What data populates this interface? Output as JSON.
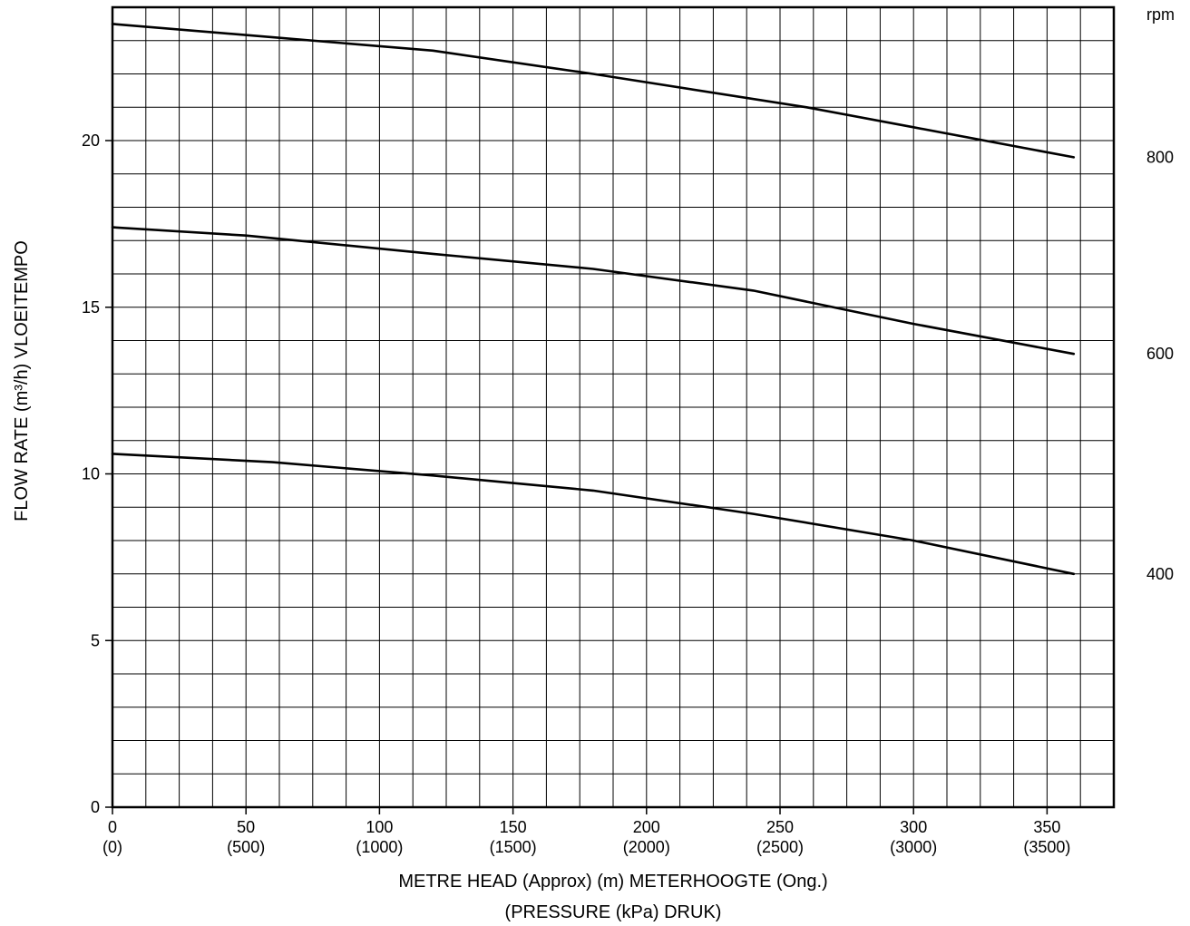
{
  "chart_data": {
    "type": "line",
    "title": "",
    "ylabel": "FLOW RATE (m³/h) VLOEITEMPO",
    "xlabel_line1": "METRE HEAD (Approx) (m) METERHOOGTE (Ong.)",
    "xlabel_line2": "(PRESSURE (kPa) DRUK)",
    "xlim": [
      0,
      375
    ],
    "ylim": [
      0,
      24
    ],
    "x_ticks": [
      {
        "value": 0,
        "label": "0",
        "sublabel": "(0)"
      },
      {
        "value": 50,
        "label": "50",
        "sublabel": "(500)"
      },
      {
        "value": 100,
        "label": "100",
        "sublabel": "(1000)"
      },
      {
        "value": 150,
        "label": "150",
        "sublabel": "(1500)"
      },
      {
        "value": 200,
        "label": "200",
        "sublabel": "(2000)"
      },
      {
        "value": 250,
        "label": "250",
        "sublabel": "(2500)"
      },
      {
        "value": 300,
        "label": "300",
        "sublabel": "(3000)"
      },
      {
        "value": 350,
        "label": "350",
        "sublabel": "(3500)"
      }
    ],
    "y_ticks": [
      {
        "value": 0,
        "label": "0"
      },
      {
        "value": 5,
        "label": "5"
      },
      {
        "value": 10,
        "label": "10"
      },
      {
        "value": 15,
        "label": "15"
      },
      {
        "value": 20,
        "label": "20"
      }
    ],
    "x_grid_step": 12.5,
    "y_grid_step": 1,
    "grid": true,
    "right_axis_title": "rpm",
    "series": [
      {
        "name": "800",
        "values": [
          {
            "x": 0,
            "y": 23.5
          },
          {
            "x": 60,
            "y": 23.1
          },
          {
            "x": 120,
            "y": 22.7
          },
          {
            "x": 180,
            "y": 22.0
          },
          {
            "x": 260,
            "y": 21.0
          },
          {
            "x": 300,
            "y": 20.4
          },
          {
            "x": 360,
            "y": 19.5
          }
        ]
      },
      {
        "name": "600",
        "values": [
          {
            "x": 0,
            "y": 17.4
          },
          {
            "x": 50,
            "y": 17.15
          },
          {
            "x": 120,
            "y": 16.6
          },
          {
            "x": 180,
            "y": 16.15
          },
          {
            "x": 240,
            "y": 15.5
          },
          {
            "x": 300,
            "y": 14.5
          },
          {
            "x": 360,
            "y": 13.6
          }
        ]
      },
      {
        "name": "400",
        "values": [
          {
            "x": 0,
            "y": 10.6
          },
          {
            "x": 60,
            "y": 10.35
          },
          {
            "x": 120,
            "y": 9.95
          },
          {
            "x": 180,
            "y": 9.5
          },
          {
            "x": 240,
            "y": 8.8
          },
          {
            "x": 300,
            "y": 8.0
          },
          {
            "x": 360,
            "y": 7.0
          }
        ]
      }
    ],
    "line_color": "#000000",
    "grid_color": "#000000"
  }
}
